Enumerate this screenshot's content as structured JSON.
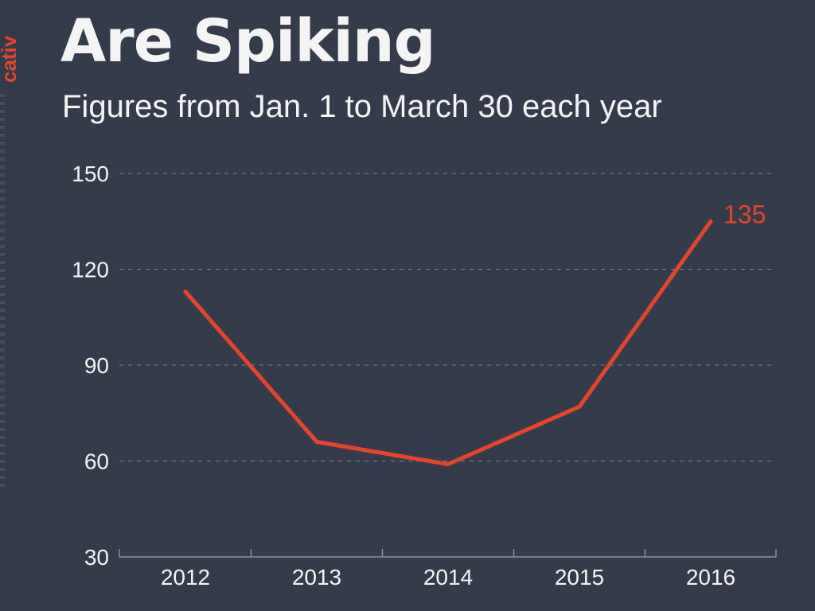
{
  "header": {
    "title": "Are Spiking",
    "subtitle": "Figures from Jan. 1 to March 30 each year",
    "side_brand": "catiy"
  },
  "colors": {
    "background": "#343c4c",
    "line": "#e8432a",
    "text": "#f4f4f4",
    "grid": "#7a8292",
    "axis": "#8a92a2"
  },
  "chart_data": {
    "type": "line",
    "title": "Are Spiking",
    "subtitle": "Figures from Jan. 1 to March 30 each year",
    "xlabel": "",
    "ylabel": "",
    "categories": [
      "2012",
      "2013",
      "2014",
      "2015",
      "2016"
    ],
    "series": [
      {
        "values": [
          113,
          66,
          59,
          77,
          135
        ]
      }
    ],
    "data_labels": [
      {
        "index": 4,
        "text": "135"
      }
    ],
    "yticks": [
      30,
      60,
      90,
      120,
      150
    ],
    "ylim": [
      30,
      150
    ],
    "grid": true,
    "grid_style": "dashed-horizontal",
    "legend": "none"
  }
}
